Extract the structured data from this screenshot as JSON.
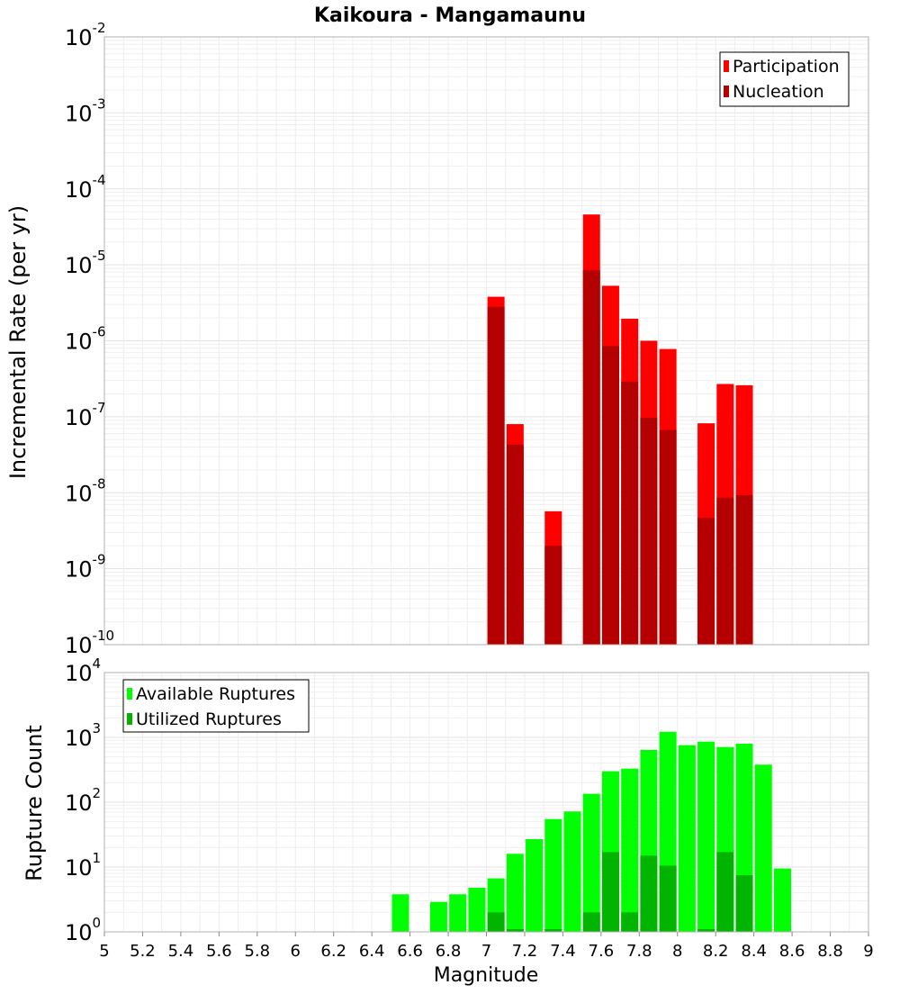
{
  "chart_data": [
    {
      "type": "bar",
      "title": "Kaikoura - Mangamaunu",
      "ylabel": "Incremental Rate (per yr)",
      "y_scale": "log",
      "ylim": [
        1e-10,
        0.01
      ],
      "xlim": [
        5,
        9
      ],
      "y_ticks": [
        {
          "base": "10",
          "exp": "-10"
        },
        {
          "base": "10",
          "exp": "-9"
        },
        {
          "base": "10",
          "exp": "-8"
        },
        {
          "base": "10",
          "exp": "-7"
        },
        {
          "base": "10",
          "exp": "-6"
        },
        {
          "base": "10",
          "exp": "-5"
        },
        {
          "base": "10",
          "exp": "-4"
        },
        {
          "base": "10",
          "exp": "-3"
        },
        {
          "base": "10",
          "exp": "-2"
        }
      ],
      "grid": true,
      "legend_position": "top-right",
      "series": [
        {
          "name": "Participation",
          "color": "#ff0000",
          "points": [
            {
              "x": 7.05,
              "y": 3.8e-06
            },
            {
              "x": 7.15,
              "y": 8e-08
            },
            {
              "x": 7.35,
              "y": 5.7e-09
            },
            {
              "x": 7.55,
              "y": 4.6e-05
            },
            {
              "x": 7.65,
              "y": 5.3e-06
            },
            {
              "x": 7.75,
              "y": 1.95e-06
            },
            {
              "x": 7.85,
              "y": 1e-06
            },
            {
              "x": 7.95,
              "y": 7.8e-07
            },
            {
              "x": 8.15,
              "y": 8.2e-08
            },
            {
              "x": 8.25,
              "y": 2.7e-07
            },
            {
              "x": 8.35,
              "y": 2.6e-07
            }
          ]
        },
        {
          "name": "Nucleation",
          "color": "#b40000",
          "points": [
            {
              "x": 7.05,
              "y": 2.8e-06
            },
            {
              "x": 7.15,
              "y": 4.3e-08
            },
            {
              "x": 7.35,
              "y": 2e-09
            },
            {
              "x": 7.55,
              "y": 8.5e-06
            },
            {
              "x": 7.65,
              "y": 8.5e-07
            },
            {
              "x": 7.75,
              "y": 2.9e-07
            },
            {
              "x": 7.85,
              "y": 9.7e-08
            },
            {
              "x": 7.95,
              "y": 6.7e-08
            },
            {
              "x": 8.15,
              "y": 4.7e-09
            },
            {
              "x": 8.25,
              "y": 8.6e-09
            },
            {
              "x": 8.35,
              "y": 9.3e-09
            }
          ]
        }
      ]
    },
    {
      "type": "bar",
      "xlabel": "Magnitude",
      "ylabel": "Rupture Count",
      "y_scale": "log",
      "ylim": [
        1,
        10000
      ],
      "xlim": [
        5,
        9
      ],
      "x_ticks": [
        "5",
        "5.2",
        "5.4",
        "5.6",
        "5.8",
        "6",
        "6.2",
        "6.4",
        "6.6",
        "6.8",
        "7",
        "7.2",
        "7.4",
        "7.6",
        "7.8",
        "8",
        "8.2",
        "8.4",
        "8.6",
        "8.8",
        "9"
      ],
      "y_ticks": [
        {
          "base": "10",
          "exp": "0"
        },
        {
          "base": "10",
          "exp": "1"
        },
        {
          "base": "10",
          "exp": "2"
        },
        {
          "base": "10",
          "exp": "3"
        },
        {
          "base": "10",
          "exp": "4"
        }
      ],
      "grid": true,
      "legend_position": "top-left",
      "series": [
        {
          "name": "Available Ruptures",
          "color": "#00ff00",
          "points": [
            {
              "x": 6.55,
              "y": 3.8
            },
            {
              "x": 6.75,
              "y": 2.9
            },
            {
              "x": 6.85,
              "y": 3.8
            },
            {
              "x": 6.95,
              "y": 4.8
            },
            {
              "x": 7.05,
              "y": 6.7
            },
            {
              "x": 7.15,
              "y": 16
            },
            {
              "x": 7.25,
              "y": 27
            },
            {
              "x": 7.35,
              "y": 55
            },
            {
              "x": 7.45,
              "y": 72
            },
            {
              "x": 7.55,
              "y": 135
            },
            {
              "x": 7.65,
              "y": 300
            },
            {
              "x": 7.75,
              "y": 330
            },
            {
              "x": 7.85,
              "y": 640
            },
            {
              "x": 7.95,
              "y": 1220
            },
            {
              "x": 8.05,
              "y": 760
            },
            {
              "x": 8.15,
              "y": 860
            },
            {
              "x": 8.25,
              "y": 710
            },
            {
              "x": 8.35,
              "y": 800
            },
            {
              "x": 8.45,
              "y": 380
            },
            {
              "x": 8.55,
              "y": 9.5
            }
          ]
        },
        {
          "name": "Utilized Ruptures",
          "color": "#00b400",
          "points": [
            {
              "x": 7.05,
              "y": 2
            },
            {
              "x": 7.15,
              "y": 1.1
            },
            {
              "x": 7.35,
              "y": 1.1
            },
            {
              "x": 7.55,
              "y": 2
            },
            {
              "x": 7.65,
              "y": 17
            },
            {
              "x": 7.75,
              "y": 2
            },
            {
              "x": 7.85,
              "y": 15
            },
            {
              "x": 7.95,
              "y": 10.5
            },
            {
              "x": 8.15,
              "y": 1.1
            },
            {
              "x": 8.25,
              "y": 17
            },
            {
              "x": 8.35,
              "y": 7.5
            }
          ]
        }
      ]
    }
  ]
}
